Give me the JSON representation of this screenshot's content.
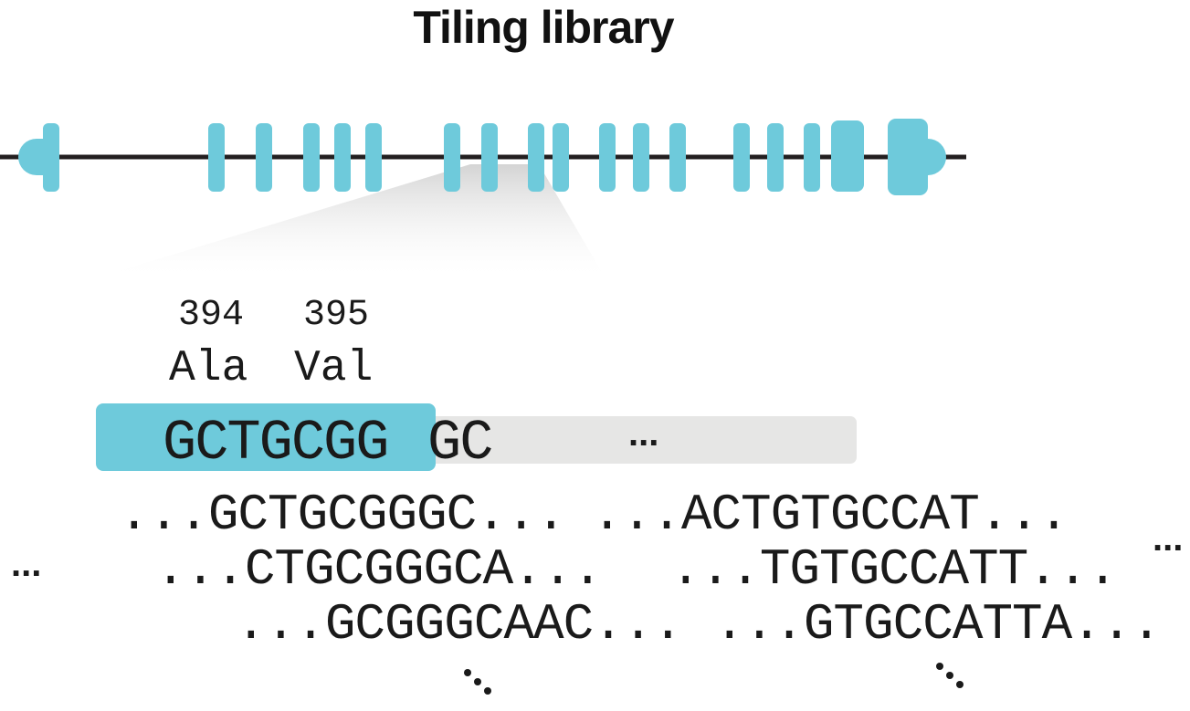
{
  "title": "Tiling library",
  "colors": {
    "exon": "#6ecadb",
    "line": "#231f20",
    "guide_bg": "#e6e6e5",
    "zoom": "#d9d9d9",
    "text": "#1a1a1a"
  },
  "codons": [
    {
      "position": "394",
      "amino_acid": "Ala"
    },
    {
      "position": "395",
      "amino_acid": "Val"
    }
  ],
  "guide": {
    "highlighted": "GCTGCGG",
    "rest": "GC",
    "ellipsis": "..."
  },
  "tiles_left": [
    "...GCTGCGGGC...",
    "...CTGCGGGCA...",
    "...GCGGGCAAC..."
  ],
  "tiles_right": [
    "...ACTGTGCCAT...",
    "...TGTGCCATT...",
    "...GTGCCATTA..."
  ],
  "side_ellipsis": "..."
}
